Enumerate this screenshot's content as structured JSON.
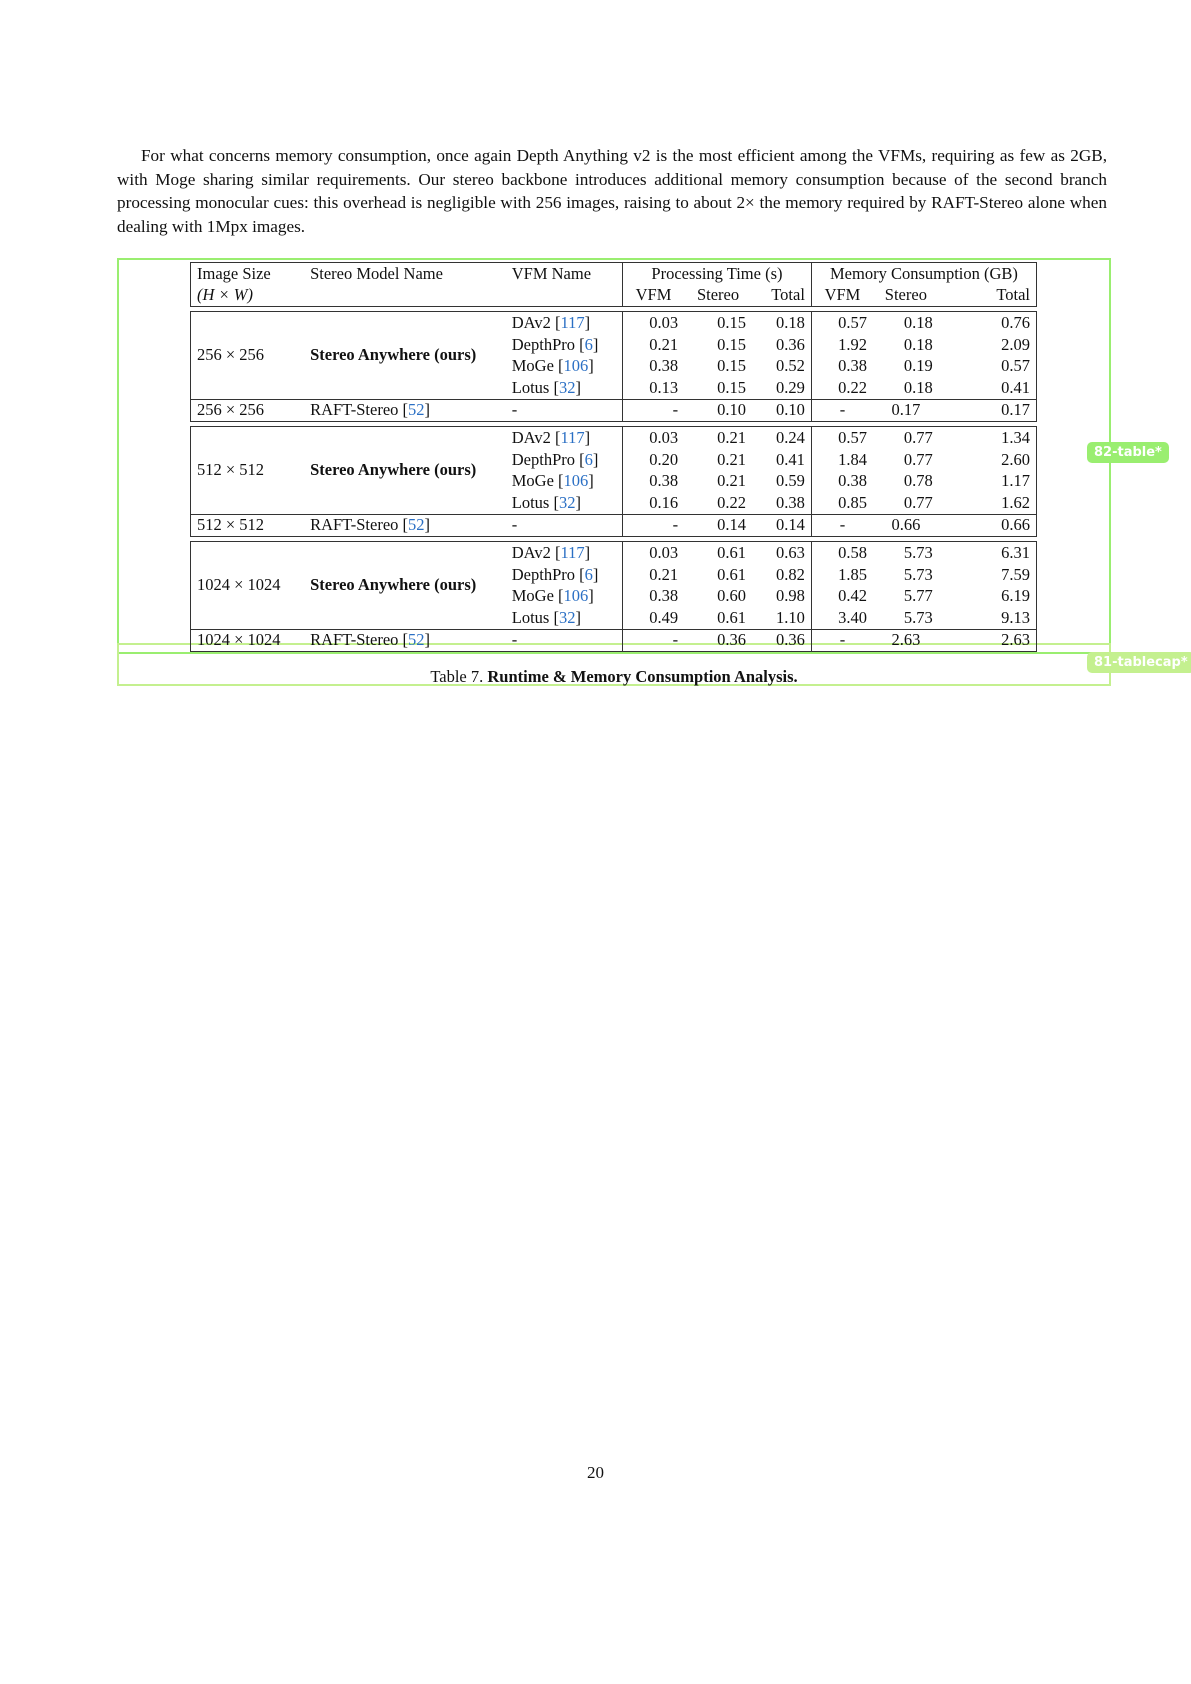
{
  "paragraph": "For what concerns memory consumption, once again Depth Anything v2 is the most efficient among the VFMs, requiring as few as 2GB, with Moge sharing similar requirements. Our stereo backbone introduces additional memory consumption because of the second branch processing monocular cues: this overhead is negligible with 256 images, raising to about 2× the memory required by RAFT-Stereo alone when dealing with 1Mpx images.",
  "labels": {
    "table": "82-table*",
    "caption": "81-tablecap*"
  },
  "table": {
    "headers": {
      "image_size": "Image Size",
      "image_size_sub": "(H × W)",
      "stereo_model": "Stereo Model Name",
      "vfm_name": "VFM Name",
      "processing_time": "Processing Time (s)",
      "memory": "Memory Consumption (GB)",
      "vfm": "VFM",
      "stereo": "Stereo",
      "total": "Total"
    },
    "groups": [
      {
        "size": "256 × 256",
        "model": "Stereo Anywhere (ours)",
        "rows": [
          {
            "vfm": "DAv2",
            "cite": "117",
            "pt_vfm": "0.03",
            "pt_stereo": "0.15",
            "pt_total": "0.18",
            "m_vfm": "0.57",
            "m_stereo": "0.18",
            "m_total": "0.76"
          },
          {
            "vfm": "DepthPro",
            "cite": "6",
            "pt_vfm": "0.21",
            "pt_stereo": "0.15",
            "pt_total": "0.36",
            "m_vfm": "1.92",
            "m_stereo": "0.18",
            "m_total": "2.09"
          },
          {
            "vfm": "MoGe",
            "cite": "106",
            "pt_vfm": "0.38",
            "pt_stereo": "0.15",
            "pt_total": "0.52",
            "m_vfm": "0.38",
            "m_stereo": "0.19",
            "m_total": "0.57"
          },
          {
            "vfm": "Lotus",
            "cite": "32",
            "pt_vfm": "0.13",
            "pt_stereo": "0.15",
            "pt_total": "0.29",
            "m_vfm": "0.22",
            "m_stereo": "0.18",
            "m_total": "0.41"
          }
        ],
        "baseline": {
          "size": "256 × 256",
          "model": "RAFT-Stereo",
          "cite": "52",
          "vfm": "-",
          "pt_vfm": "-",
          "pt_stereo": "0.10",
          "pt_total": "0.10",
          "m_vfm": "-",
          "m_stereo": "0.17",
          "m_total": "0.17"
        }
      },
      {
        "size": "512 × 512",
        "model": "Stereo Anywhere (ours)",
        "rows": [
          {
            "vfm": "DAv2",
            "cite": "117",
            "pt_vfm": "0.03",
            "pt_stereo": "0.21",
            "pt_total": "0.24",
            "m_vfm": "0.57",
            "m_stereo": "0.77",
            "m_total": "1.34"
          },
          {
            "vfm": "DepthPro",
            "cite": "6",
            "pt_vfm": "0.20",
            "pt_stereo": "0.21",
            "pt_total": "0.41",
            "m_vfm": "1.84",
            "m_stereo": "0.77",
            "m_total": "2.60"
          },
          {
            "vfm": "MoGe",
            "cite": "106",
            "pt_vfm": "0.38",
            "pt_stereo": "0.21",
            "pt_total": "0.59",
            "m_vfm": "0.38",
            "m_stereo": "0.78",
            "m_total": "1.17"
          },
          {
            "vfm": "Lotus",
            "cite": "32",
            "pt_vfm": "0.16",
            "pt_stereo": "0.22",
            "pt_total": "0.38",
            "m_vfm": "0.85",
            "m_stereo": "0.77",
            "m_total": "1.62"
          }
        ],
        "baseline": {
          "size": "512 × 512",
          "model": "RAFT-Stereo",
          "cite": "52",
          "vfm": "-",
          "pt_vfm": "-",
          "pt_stereo": "0.14",
          "pt_total": "0.14",
          "m_vfm": "-",
          "m_stereo": "0.66",
          "m_total": "0.66"
        }
      },
      {
        "size": "1024 × 1024",
        "model": "Stereo Anywhere (ours)",
        "rows": [
          {
            "vfm": "DAv2",
            "cite": "117",
            "pt_vfm": "0.03",
            "pt_stereo": "0.61",
            "pt_total": "0.63",
            "m_vfm": "0.58",
            "m_stereo": "5.73",
            "m_total": "6.31"
          },
          {
            "vfm": "DepthPro",
            "cite": "6",
            "pt_vfm": "0.21",
            "pt_stereo": "0.61",
            "pt_total": "0.82",
            "m_vfm": "1.85",
            "m_stereo": "5.73",
            "m_total": "7.59"
          },
          {
            "vfm": "MoGe",
            "cite": "106",
            "pt_vfm": "0.38",
            "pt_stereo": "0.60",
            "pt_total": "0.98",
            "m_vfm": "0.42",
            "m_stereo": "5.77",
            "m_total": "6.19"
          },
          {
            "vfm": "Lotus",
            "cite": "32",
            "pt_vfm": "0.49",
            "pt_stereo": "0.61",
            "pt_total": "1.10",
            "m_vfm": "3.40",
            "m_stereo": "5.73",
            "m_total": "9.13"
          }
        ],
        "baseline": {
          "size": "1024 × 1024",
          "model": "RAFT-Stereo",
          "cite": "52",
          "vfm": "-",
          "pt_vfm": "-",
          "pt_stereo": "0.36",
          "pt_total": "0.36",
          "m_vfm": "-",
          "m_stereo": "2.63",
          "m_total": "2.63"
        }
      }
    ]
  },
  "caption": {
    "prefix": "Table 7.",
    "title": "Runtime & Memory Consumption Analysis."
  },
  "page_number": "20"
}
